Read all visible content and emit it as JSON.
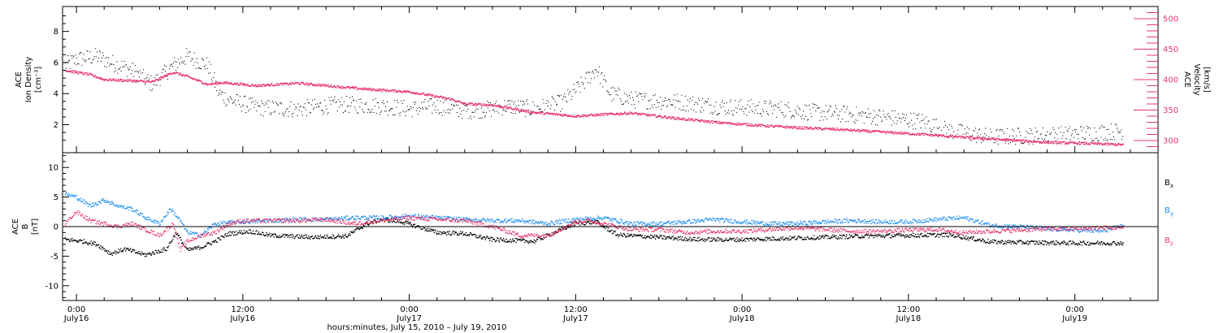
{
  "colors": {
    "density": "#000000",
    "velocity": "#e8386a",
    "bx": "#000000",
    "by": "#1a8cf0",
    "bz": "#e8386a",
    "frame": "#000000",
    "background": "#ffffff"
  },
  "chart_data": [
    {
      "type": "scatter",
      "panel": "top",
      "ylabel_left": [
        "ACE",
        "Ion Density",
        "[cm⁻³]"
      ],
      "ylabel_right": [
        "ACE",
        "Velocity",
        "[km/s]"
      ],
      "yticks_left": [
        2,
        4,
        6,
        8
      ],
      "ylim_left": [
        0.2,
        9.6
      ],
      "yticks_right": [
        300,
        350,
        400,
        450,
        500
      ],
      "ylim_right": [
        280,
        520
      ],
      "x_hours_start": -1.0,
      "x_hours_end": 78.0,
      "series": [
        {
          "name_hidden": true,
          "axis": "left",
          "key": "ion_density",
          "anchors_hours": [
            -0.8,
            0,
            1.5,
            2.5,
            4,
            5.5,
            7,
            8,
            9.5,
            10.3,
            11,
            13,
            16,
            19,
            22,
            24,
            26,
            28,
            30,
            31,
            33,
            35,
            36.5,
            37.5,
            38.5,
            40,
            43,
            46,
            48,
            51,
            53,
            55,
            58,
            61,
            63,
            66,
            69,
            72,
            75.5
          ],
          "anchors_values": [
            5.8,
            6.2,
            6.4,
            6.0,
            5.5,
            4.6,
            5.8,
            6.4,
            5.8,
            4.0,
            3.6,
            3.1,
            3.0,
            3.3,
            3.2,
            3.0,
            3.2,
            2.9,
            3.0,
            3.2,
            3.0,
            3.4,
            4.6,
            5.6,
            4.0,
            3.6,
            3.5,
            3.2,
            3.1,
            3.0,
            2.8,
            2.7,
            2.5,
            2.2,
            1.6,
            1.2,
            1.3,
            1.4,
            1.6
          ]
        },
        {
          "name_hidden": true,
          "axis": "right",
          "key": "velocity",
          "anchors_hours": [
            -0.8,
            0,
            1,
            2,
            4,
            5.5,
            7,
            8,
            9.5,
            10.5,
            13,
            16,
            19,
            21,
            24,
            25,
            27,
            28,
            30,
            33,
            36,
            40,
            43,
            46,
            49,
            52,
            55,
            58,
            61,
            64,
            67,
            70,
            73,
            75.5
          ],
          "anchors_values": [
            415,
            412,
            408,
            400,
            398,
            396,
            412,
            405,
            392,
            395,
            390,
            394,
            388,
            384,
            380,
            376,
            368,
            360,
            358,
            346,
            340,
            345,
            337,
            330,
            325,
            321,
            318,
            314,
            310,
            305,
            301,
            297,
            295,
            293
          ]
        }
      ]
    },
    {
      "type": "scatter",
      "panel": "bottom",
      "ylabel_left": [
        "ACE",
        "B",
        "[nT]"
      ],
      "yticks_left": [
        -10,
        -5,
        0,
        5,
        10
      ],
      "ylim_left": [
        -12.5,
        12.5
      ],
      "zero_line": true,
      "legend": [
        "Bx",
        "By",
        "Bz"
      ],
      "legend_placement": "right",
      "series": [
        {
          "name": "Bx",
          "key": "bx",
          "anchors_hours": [
            -0.8,
            0.5,
            1.5,
            2.5,
            3.5,
            5,
            6.5,
            7.2,
            8,
            9,
            10,
            11,
            12.5,
            14,
            17,
            19.5,
            21,
            22,
            23.5,
            26,
            28,
            30,
            33,
            36,
            37.5,
            39,
            42,
            45,
            48,
            51,
            54,
            57,
            60,
            63,
            66,
            69,
            72,
            75.5
          ],
          "anchors_values": [
            -2.2,
            -2.5,
            -3.0,
            -4.6,
            -3.8,
            -4.8,
            -3.8,
            -1.0,
            -4.0,
            -3.5,
            -2.5,
            -1.2,
            -0.8,
            -1.5,
            -1.8,
            -1.6,
            0.5,
            1.2,
            0.8,
            -1.0,
            -1.2,
            -2.2,
            -2.5,
            0.5,
            0.8,
            -1.4,
            -1.8,
            -2.2,
            -2.2,
            -2.0,
            -1.8,
            -1.6,
            -1.5,
            -1.4,
            -2.6,
            -2.7,
            -2.8,
            -2.8
          ]
        },
        {
          "name": "By",
          "key": "by",
          "anchors_hours": [
            -0.8,
            0,
            1,
            2,
            3,
            4,
            5,
            6,
            6.8,
            7.5,
            8,
            9,
            10,
            12,
            14,
            16,
            18,
            20,
            22,
            24,
            26,
            28,
            30,
            32,
            34,
            36,
            38,
            40,
            42,
            44,
            46,
            48,
            50,
            52,
            54,
            56,
            58,
            60,
            62,
            64,
            66,
            68,
            70,
            72,
            74,
            75.5
          ],
          "anchors_values": [
            5.5,
            5.0,
            3.5,
            4.5,
            3.5,
            3.0,
            1.5,
            0.5,
            3.0,
            1.0,
            -1.0,
            -1.5,
            0.5,
            0.8,
            1.0,
            1.2,
            1.2,
            1.5,
            1.5,
            1.8,
            1.5,
            1.2,
            1.0,
            1.0,
            0.5,
            1.2,
            1.5,
            0.5,
            0.5,
            0.8,
            1.2,
            0.8,
            0.5,
            0.5,
            0.8,
            1.0,
            0.8,
            0.8,
            1.2,
            1.5,
            0.2,
            0.0,
            -0.4,
            -0.6,
            -0.8,
            0.2
          ]
        },
        {
          "name": "Bz",
          "key": "bz",
          "anchors_hours": [
            -0.8,
            0,
            1,
            2,
            3,
            4,
            5,
            6,
            7,
            7.5,
            8,
            9,
            10,
            11,
            12,
            14,
            16,
            18,
            20,
            22,
            24,
            26,
            28,
            30,
            32,
            34,
            36,
            37,
            38,
            40,
            42,
            44,
            46,
            48,
            50,
            52,
            54,
            56,
            58,
            60,
            62,
            64,
            66,
            68,
            70,
            72,
            74,
            75.5
          ],
          "anchors_values": [
            0.5,
            2.5,
            1.0,
            0.5,
            0.0,
            0.5,
            -0.5,
            -1.5,
            0.5,
            -4.0,
            -2.5,
            -1.5,
            -1.0,
            0.5,
            1.0,
            1.0,
            1.0,
            1.2,
            0.5,
            1.0,
            1.5,
            1.2,
            1.0,
            0.0,
            -1.5,
            -1.5,
            0.8,
            1.0,
            0.5,
            -0.5,
            -0.5,
            -1.0,
            -0.8,
            -0.8,
            -0.5,
            -0.2,
            -0.5,
            -0.8,
            -0.8,
            -0.6,
            -0.5,
            -1.0,
            -0.8,
            -0.6,
            -0.4,
            -0.4,
            -0.2,
            -0.2
          ]
        }
      ]
    }
  ],
  "x_axis": {
    "tick_hours": [
      0,
      12,
      24,
      36,
      48,
      60,
      72
    ],
    "time_labels": [
      "0:00",
      "12:00",
      "0:00",
      "12:00",
      "0:00",
      "12:00",
      "0:00"
    ],
    "date_labels": [
      "July16",
      "July16",
      "July17",
      "July17",
      "July18",
      "July18",
      "July19"
    ],
    "title": "hours:minutes, July 15, 2010 – July 19, 2010"
  },
  "legend_text": {
    "bx": {
      "base": "B",
      "sub": "x"
    },
    "by": {
      "base": "B",
      "sub": "y"
    },
    "bz": {
      "base": "B",
      "sub": "z"
    }
  }
}
